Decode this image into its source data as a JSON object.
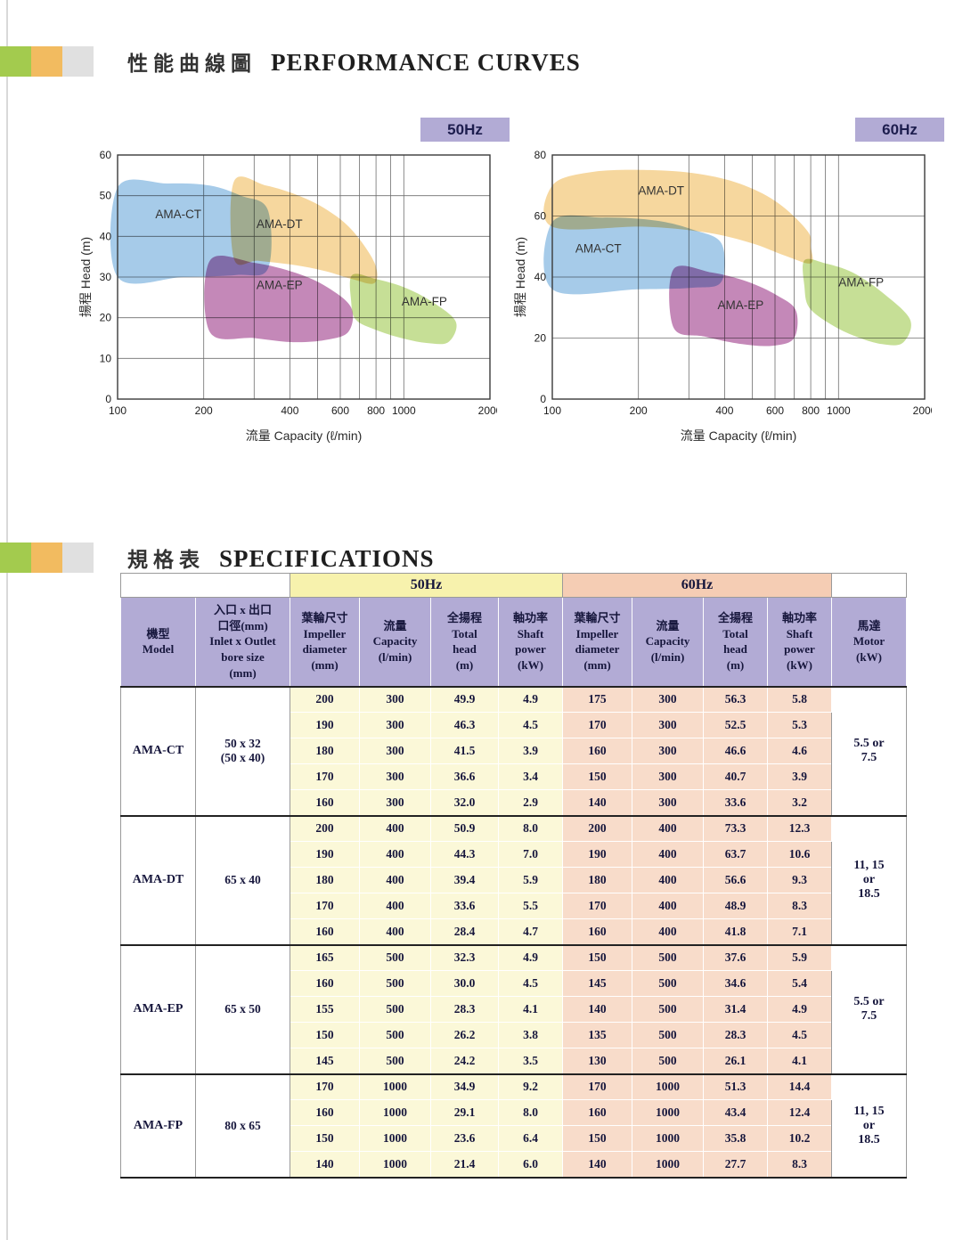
{
  "headers": {
    "curves_zh": "性能曲線圖",
    "curves_en": "PERFORMANCE CURVES",
    "specs_zh": "規格表",
    "specs_en": "SPECIFICATIONS"
  },
  "chart_data": [
    {
      "type": "area",
      "freq_label": "50Hz",
      "xlabel": "流量 Capacity (ℓ/min)",
      "ylabel": "揚程 Head (m)",
      "x_scale": "log",
      "x_range": [
        100,
        2000
      ],
      "y_range": [
        0,
        60
      ],
      "x_ticks": [
        100,
        200,
        400,
        600,
        800,
        1000,
        2000
      ],
      "x_grid": [
        200,
        300,
        400,
        500,
        600,
        700,
        800,
        900,
        1000
      ],
      "y_ticks": [
        0,
        10,
        20,
        30,
        40,
        50,
        60
      ],
      "y_grid": [
        10,
        20,
        30,
        40,
        50
      ],
      "grid": true,
      "regions": [
        {
          "name": "AMA-CT",
          "color": "#a6cbe9",
          "label_at": [
            163,
            44.5
          ],
          "points": [
            [
              100,
              52
            ],
            [
              150,
              53
            ],
            [
              210,
              52.5
            ],
            [
              270,
              50
            ],
            [
              335,
              46.5
            ],
            [
              335,
              32
            ],
            [
              260,
              30.5
            ],
            [
              170,
              30
            ],
            [
              100,
              30
            ]
          ]
        },
        {
          "name": "AMA-DT",
          "color": "#f6d79e",
          "label_at": [
            368,
            42
          ],
          "points": [
            [
              255,
              53.5
            ],
            [
              330,
              52.5
            ],
            [
              430,
              50
            ],
            [
              540,
              46.5
            ],
            [
              660,
              41.5
            ],
            [
              790,
              33.5
            ],
            [
              790,
              28.5
            ],
            [
              660,
              29.5
            ],
            [
              530,
              31.5
            ],
            [
              410,
              33
            ],
            [
              310,
              34
            ],
            [
              255,
              34.5
            ]
          ]
        },
        {
          "name": "AMA-EP",
          "color": "#c488b8",
          "label_at": [
            368,
            27
          ],
          "points": [
            [
              210,
              34
            ],
            [
              300,
              33.5
            ],
            [
              420,
              31
            ],
            [
              540,
              27.5
            ],
            [
              655,
              22.5
            ],
            [
              640,
              16.5
            ],
            [
              530,
              14.5
            ],
            [
              410,
              14
            ],
            [
              300,
              15
            ],
            [
              210,
              16.5
            ]
          ]
        },
        {
          "name": "AMA-FP",
          "color": "#c6df96",
          "label_at": [
            1180,
            23
          ],
          "points": [
            [
              660,
              30.5
            ],
            [
              800,
              29.5
            ],
            [
              1000,
              27.5
            ],
            [
              1250,
              24
            ],
            [
              1520,
              19
            ],
            [
              1430,
              14
            ],
            [
              1200,
              13.8
            ],
            [
              980,
              15
            ],
            [
              800,
              17
            ],
            [
              680,
              19.5
            ],
            [
              655,
              24
            ]
          ]
        }
      ]
    },
    {
      "type": "area",
      "freq_label": "60Hz",
      "xlabel": "流量 Capacity (ℓ/min)",
      "ylabel": "揚程 Head (m)",
      "x_scale": "log",
      "x_range": [
        100,
        2000
      ],
      "y_range": [
        0,
        80
      ],
      "x_ticks": [
        100,
        200,
        400,
        600,
        800,
        1000,
        2000
      ],
      "x_grid": [
        200,
        300,
        400,
        500,
        600,
        700,
        800,
        900,
        1000
      ],
      "y_ticks": [
        0,
        20,
        40,
        60,
        80
      ],
      "y_grid": [
        20,
        40,
        60
      ],
      "grid": true,
      "regions": [
        {
          "name": "AMA-DT",
          "color": "#f6d79e",
          "label_at": [
            240,
            67
          ],
          "points": [
            [
              100,
              70
            ],
            [
              140,
              74.5
            ],
            [
              230,
              75
            ],
            [
              340,
              73.5
            ],
            [
              470,
              70
            ],
            [
              620,
              64
            ],
            [
              780,
              55
            ],
            [
              800,
              50
            ],
            [
              800,
              44.5
            ],
            [
              650,
              47
            ],
            [
              500,
              51
            ],
            [
              350,
              54.5
            ],
            [
              210,
              56.5
            ],
            [
              100,
              56.5
            ]
          ]
        },
        {
          "name": "AMA-CT",
          "color": "#a6cbe9",
          "label_at": [
            145,
            48
          ],
          "points": [
            [
              100,
              58
            ],
            [
              150,
              59.5
            ],
            [
              230,
              58.5
            ],
            [
              310,
              55.5
            ],
            [
              390,
              51
            ],
            [
              390,
              38.5
            ],
            [
              310,
              36.5
            ],
            [
              200,
              36
            ],
            [
              100,
              36
            ]
          ]
        },
        {
          "name": "AMA-EP",
          "color": "#c488b8",
          "label_at": [
            455,
            29.5
          ],
          "points": [
            [
              265,
              42.5
            ],
            [
              360,
              41.5
            ],
            [
              480,
              38.5
            ],
            [
              610,
              34
            ],
            [
              710,
              29
            ],
            [
              700,
              20
            ],
            [
              590,
              17.5
            ],
            [
              460,
              18
            ],
            [
              340,
              20.5
            ],
            [
              265,
              23.5
            ]
          ]
        },
        {
          "name": "AMA-FP",
          "color": "#c6df96",
          "label_at": [
            1200,
            37
          ],
          "points": [
            [
              760,
              45.5
            ],
            [
              900,
              44.5
            ],
            [
              1120,
              41.5
            ],
            [
              1420,
              35
            ],
            [
              1780,
              26
            ],
            [
              1680,
              18.5
            ],
            [
              1420,
              18
            ],
            [
              1150,
              20.5
            ],
            [
              940,
              24.5
            ],
            [
              790,
              30
            ],
            [
              760,
              37
            ]
          ]
        }
      ]
    }
  ],
  "spec_table": {
    "bands": {
      "hz50": "50Hz",
      "hz60": "60Hz"
    },
    "headers": {
      "model": "機型\nModel",
      "bore": "入口 x 出口\n口徑(mm)\nInlet x Outlet\nbore size\n(mm)",
      "impeller": "葉輪尺寸\nImpeller\ndiameter\n(mm)",
      "capacity": "流量\nCapacity\n(l/min)",
      "head": "全揚程\nTotal\nhead\n(m)",
      "power": "軸功率\nShaft\npower\n(kW)",
      "motor": "馬達\nMotor\n(kW)"
    },
    "groups": [
      {
        "model": "AMA-CT",
        "bore": "50 x 32\n(50 x 40)",
        "motor": "5.5 or\n7.5",
        "rows": [
          {
            "hz50": [
              "200",
              "300",
              "49.9",
              "4.9"
            ],
            "hz60": [
              "175",
              "300",
              "56.3",
              "5.8"
            ]
          },
          {
            "hz50": [
              "190",
              "300",
              "46.3",
              "4.5"
            ],
            "hz60": [
              "170",
              "300",
              "52.5",
              "5.3"
            ]
          },
          {
            "hz50": [
              "180",
              "300",
              "41.5",
              "3.9"
            ],
            "hz60": [
              "160",
              "300",
              "46.6",
              "4.6"
            ]
          },
          {
            "hz50": [
              "170",
              "300",
              "36.6",
              "3.4"
            ],
            "hz60": [
              "150",
              "300",
              "40.7",
              "3.9"
            ]
          },
          {
            "hz50": [
              "160",
              "300",
              "32.0",
              "2.9"
            ],
            "hz60": [
              "140",
              "300",
              "33.6",
              "3.2"
            ]
          }
        ]
      },
      {
        "model": "AMA-DT",
        "bore": "65 x 40",
        "motor": "11, 15\nor\n18.5",
        "rows": [
          {
            "hz50": [
              "200",
              "400",
              "50.9",
              "8.0"
            ],
            "hz60": [
              "200",
              "400",
              "73.3",
              "12.3"
            ]
          },
          {
            "hz50": [
              "190",
              "400",
              "44.3",
              "7.0"
            ],
            "hz60": [
              "190",
              "400",
              "63.7",
              "10.6"
            ]
          },
          {
            "hz50": [
              "180",
              "400",
              "39.4",
              "5.9"
            ],
            "hz60": [
              "180",
              "400",
              "56.6",
              "9.3"
            ]
          },
          {
            "hz50": [
              "170",
              "400",
              "33.6",
              "5.5"
            ],
            "hz60": [
              "170",
              "400",
              "48.9",
              "8.3"
            ]
          },
          {
            "hz50": [
              "160",
              "400",
              "28.4",
              "4.7"
            ],
            "hz60": [
              "160",
              "400",
              "41.8",
              "7.1"
            ]
          }
        ]
      },
      {
        "model": "AMA-EP",
        "bore": "65 x 50",
        "motor": "5.5 or\n7.5",
        "rows": [
          {
            "hz50": [
              "165",
              "500",
              "32.3",
              "4.9"
            ],
            "hz60": [
              "150",
              "500",
              "37.6",
              "5.9"
            ]
          },
          {
            "hz50": [
              "160",
              "500",
              "30.0",
              "4.5"
            ],
            "hz60": [
              "145",
              "500",
              "34.6",
              "5.4"
            ]
          },
          {
            "hz50": [
              "155",
              "500",
              "28.3",
              "4.1"
            ],
            "hz60": [
              "140",
              "500",
              "31.4",
              "4.9"
            ]
          },
          {
            "hz50": [
              "150",
              "500",
              "26.2",
              "3.8"
            ],
            "hz60": [
              "135",
              "500",
              "28.3",
              "4.5"
            ]
          },
          {
            "hz50": [
              "145",
              "500",
              "24.2",
              "3.5"
            ],
            "hz60": [
              "130",
              "500",
              "26.1",
              "4.1"
            ]
          }
        ]
      },
      {
        "model": "AMA-FP",
        "bore": "80 x 65",
        "motor": "11, 15\nor\n18.5",
        "rows": [
          {
            "hz50": [
              "170",
              "1000",
              "34.9",
              "9.2"
            ],
            "hz60": [
              "170",
              "1000",
              "51.3",
              "14.4"
            ]
          },
          {
            "hz50": [
              "160",
              "1000",
              "29.1",
              "8.0"
            ],
            "hz60": [
              "160",
              "1000",
              "43.4",
              "12.4"
            ]
          },
          {
            "hz50": [
              "150",
              "1000",
              "23.6",
              "6.4"
            ],
            "hz60": [
              "150",
              "1000",
              "35.8",
              "10.2"
            ]
          },
          {
            "hz50": [
              "140",
              "1000",
              "21.4",
              "6.0"
            ],
            "hz60": [
              "140",
              "1000",
              "27.7",
              "8.3"
            ]
          }
        ]
      }
    ]
  },
  "colors": {
    "badge_bg": "#b2abd5",
    "band_50hz": "#f7f2ad",
    "band_60hz": "#f5cdb4",
    "cell_50hz": "#fbf8d8",
    "cell_60hz": "#f8dcca",
    "header_cell": "#b2abd5",
    "region_ct": "#a6cbe9",
    "region_dt": "#f6d79e",
    "region_ep": "#c488b8",
    "region_fp": "#c6df96",
    "decor_green": "#a3cb4e",
    "decor_orange": "#f2bb60",
    "decor_gray": "#e0e0e0"
  }
}
